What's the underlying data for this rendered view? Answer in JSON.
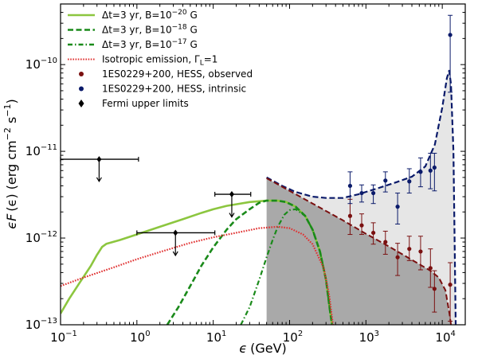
{
  "chart_data": {
    "type": "scatter",
    "title": "",
    "xlabel_symbol": "ϵ",
    "xlabel_unit": "(GeV)",
    "ylabel": {
      "prefix": "ϵF",
      "arg": "(ϵ)",
      "unit_open": "(erg cm",
      "unit_exp1": "−2",
      "unit_mid": " s",
      "unit_exp2": "−1",
      "unit_close": ")"
    },
    "xscale": "log",
    "yscale": "log",
    "xlim": [
      0.1,
      20000
    ],
    "ylim": [
      1e-13,
      5e-10
    ],
    "x_ticks": [
      {
        "value": 0.1,
        "base": "10",
        "exp": "−1"
      },
      {
        "value": 1,
        "base": "10",
        "exp": "0"
      },
      {
        "value": 10,
        "base": "10",
        "exp": "1"
      },
      {
        "value": 100,
        "base": "10",
        "exp": "2"
      },
      {
        "value": 1000,
        "base": "10",
        "exp": "3"
      },
      {
        "value": 10000,
        "base": "10",
        "exp": "4"
      }
    ],
    "y_ticks": [
      {
        "value": 1e-13,
        "base": "10",
        "exp": "−13"
      },
      {
        "value": 1e-12,
        "base": "10",
        "exp": "−12"
      },
      {
        "value": 1e-11,
        "base": "10",
        "exp": "−11"
      },
      {
        "value": 1e-10,
        "base": "10",
        "exp": "−10"
      }
    ],
    "legend_position": "top-left",
    "legend": [
      {
        "id": "cascade-b20",
        "prefix": "Δt=3 yr, B=10",
        "exp": "−20",
        "suffix": " G",
        "color": "#8cc63f",
        "style": "solid",
        "marker": ""
      },
      {
        "id": "cascade-b18",
        "prefix": "Δt=3 yr, B=10",
        "exp": "−18",
        "suffix": " G",
        "color": "#1a8a1a",
        "style": "dashed",
        "marker": ""
      },
      {
        "id": "cascade-b17",
        "prefix": "Δt=3 yr, B=10",
        "exp": "−17",
        "suffix": " G",
        "color": "#1a8a1a",
        "style": "dashdot",
        "marker": ""
      },
      {
        "id": "isotropic",
        "prefix": "Isotropic emission, Γ",
        "sub": "L",
        "suffix": "=1",
        "color": "#e03030",
        "style": "dotted",
        "marker": ""
      },
      {
        "id": "hess-observed",
        "prefix": "1ES0229+200, HESS, observed",
        "color": "#7a1010",
        "style": "",
        "marker": "circle"
      },
      {
        "id": "hess-intrinsic",
        "prefix": "1ES0229+200, HESS, intrinsic",
        "color": "#0a1a6a",
        "style": "",
        "marker": "circle"
      },
      {
        "id": "fermi-ul",
        "prefix": "Fermi upper limits",
        "color": "#000000",
        "style": "",
        "marker": "diamond"
      }
    ],
    "series": [
      {
        "name": "Δt=3 yr, B=10^-20 G",
        "style": "solid",
        "color": "#8cc63f",
        "width": 2.6,
        "points": [
          [
            0.1,
            1.35e-13
          ],
          [
            0.13,
            2e-13
          ],
          [
            0.18,
            3.1e-13
          ],
          [
            0.25,
            4.8e-13
          ],
          [
            0.3,
            6.4e-13
          ],
          [
            0.35,
            7.9e-13
          ],
          [
            0.4,
            8.6e-13
          ],
          [
            0.6,
            9.5e-13
          ],
          [
            1,
            1.1e-12
          ],
          [
            2,
            1.35e-12
          ],
          [
            4,
            1.65e-12
          ],
          [
            7,
            1.95e-12
          ],
          [
            10,
            2.15e-12
          ],
          [
            15,
            2.35e-12
          ],
          [
            20,
            2.45e-12
          ],
          [
            30,
            2.6e-12
          ],
          [
            50,
            2.7e-12
          ],
          [
            70,
            2.7e-12
          ],
          [
            90,
            2.6e-12
          ],
          [
            120,
            2.3e-12
          ],
          [
            160,
            1.8e-12
          ],
          [
            200,
            1.25e-12
          ],
          [
            250,
            7e-13
          ],
          [
            300,
            3.3e-13
          ],
          [
            340,
            1.4e-13
          ],
          [
            360,
            1e-13
          ]
        ]
      },
      {
        "name": "Δt=3 yr, B=10^-18 G",
        "style": "dashed",
        "color": "#1a8a1a",
        "width": 2.6,
        "points": [
          [
            2.5,
            1e-13
          ],
          [
            3.5,
            1.6e-13
          ],
          [
            5,
            2.8e-13
          ],
          [
            7,
            4.8e-13
          ],
          [
            10,
            7.8e-13
          ],
          [
            15,
            1.25e-12
          ],
          [
            20,
            1.65e-12
          ],
          [
            30,
            2.15e-12
          ],
          [
            40,
            2.55e-12
          ],
          [
            50,
            2.7e-12
          ],
          [
            70,
            2.7e-12
          ],
          [
            90,
            2.6e-12
          ],
          [
            120,
            2.3e-12
          ],
          [
            160,
            1.8e-12
          ],
          [
            200,
            1.25e-12
          ],
          [
            250,
            7e-13
          ],
          [
            300,
            3.3e-13
          ],
          [
            340,
            1.4e-13
          ],
          [
            360,
            1e-13
          ]
        ]
      },
      {
        "name": "Δt=3 yr, B=10^-17 G",
        "style": "dashdot",
        "color": "#1a8a1a",
        "width": 2.2,
        "points": [
          [
            23,
            1e-13
          ],
          [
            30,
            1.6e-13
          ],
          [
            40,
            3.3e-13
          ],
          [
            50,
            6e-13
          ],
          [
            60,
            9.5e-13
          ],
          [
            70,
            1.35e-12
          ],
          [
            85,
            1.85e-12
          ],
          [
            100,
            2.1e-12
          ],
          [
            120,
            2.15e-12
          ],
          [
            160,
            1.8e-12
          ],
          [
            200,
            1.25e-12
          ],
          [
            250,
            7e-13
          ],
          [
            300,
            3.3e-13
          ],
          [
            340,
            1.4e-13
          ],
          [
            360,
            1e-13
          ]
        ]
      },
      {
        "name": "Isotropic emission, Γ_L=1",
        "style": "dotted",
        "color": "#e03030",
        "width": 2.2,
        "points": [
          [
            0.1,
            2.8e-13
          ],
          [
            0.2,
            3.5e-13
          ],
          [
            0.5,
            4.6e-13
          ],
          [
            1,
            5.7e-13
          ],
          [
            2,
            6.9e-13
          ],
          [
            5,
            8.8e-13
          ],
          [
            10,
            1.02e-12
          ],
          [
            20,
            1.15e-12
          ],
          [
            40,
            1.3e-12
          ],
          [
            70,
            1.35e-12
          ],
          [
            100,
            1.3e-12
          ],
          [
            150,
            1.1e-12
          ],
          [
            200,
            8.5e-13
          ],
          [
            280,
            4.5e-13
          ],
          [
            330,
            2.2e-13
          ],
          [
            360,
            1.2e-13
          ],
          [
            370,
            1e-13
          ]
        ]
      },
      {
        "name": "intrinsic-model",
        "style": "dashed",
        "color": "#0a1a6a",
        "width": 2.2,
        "points": [
          [
            50,
            5e-12
          ],
          [
            80,
            4e-12
          ],
          [
            120,
            3.4e-12
          ],
          [
            200,
            3e-12
          ],
          [
            300,
            2.9e-12
          ],
          [
            500,
            2.9e-12
          ],
          [
            800,
            3.2e-12
          ],
          [
            1500,
            3.8e-12
          ],
          [
            2500,
            4.4e-12
          ],
          [
            4000,
            5.1e-12
          ],
          [
            6000,
            6.7e-12
          ],
          [
            8000,
            1.2e-11
          ],
          [
            10000,
            3.2e-11
          ],
          [
            11500,
            7e-11
          ],
          [
            12300,
            8.5e-11
          ],
          [
            13000,
            6e-11
          ],
          [
            14000,
            1e-11
          ],
          [
            15000,
            1e-13
          ]
        ]
      },
      {
        "name": "observed-model",
        "style": "dashed",
        "color": "#7a1010",
        "width": 2.0,
        "points": [
          [
            50,
            4.9e-12
          ],
          [
            100,
            3.5e-12
          ],
          [
            200,
            2.5e-12
          ],
          [
            500,
            1.6e-12
          ],
          [
            1000,
            1.12e-12
          ],
          [
            2000,
            8e-13
          ],
          [
            4000,
            5.6e-13
          ],
          [
            7000,
            4.2e-13
          ],
          [
            9000,
            3.5e-13
          ],
          [
            11000,
            2.5e-13
          ],
          [
            12500,
            1.3e-13
          ],
          [
            13000,
            1e-13
          ]
        ]
      }
    ],
    "shaded_regions": [
      {
        "name": "observed-band",
        "color": "#a9a9a9",
        "points": [
          [
            50,
            1e-13
          ],
          [
            50,
            4.9e-12
          ],
          [
            100,
            3.5e-12
          ],
          [
            200,
            2.5e-12
          ],
          [
            500,
            1.6e-12
          ],
          [
            1000,
            1.12e-12
          ],
          [
            2000,
            8e-13
          ],
          [
            4000,
            5.6e-13
          ],
          [
            7000,
            4.2e-13
          ],
          [
            9000,
            3.5e-13
          ],
          [
            11000,
            2.5e-13
          ],
          [
            12500,
            1.3e-13
          ],
          [
            13000,
            1e-13
          ]
        ]
      },
      {
        "name": "intrinsic-band",
        "color": "#e6e6e6",
        "points": [
          [
            50,
            4.9e-12
          ],
          [
            80,
            4e-12
          ],
          [
            120,
            3.4e-12
          ],
          [
            200,
            3e-12
          ],
          [
            300,
            2.9e-12
          ],
          [
            500,
            2.9e-12
          ],
          [
            800,
            3.2e-12
          ],
          [
            1500,
            3.8e-12
          ],
          [
            2500,
            4.4e-12
          ],
          [
            4000,
            5.1e-12
          ],
          [
            6000,
            6.7e-12
          ],
          [
            8000,
            1.2e-11
          ],
          [
            10000,
            3.2e-11
          ],
          [
            11500,
            7e-11
          ],
          [
            12300,
            8.5e-11
          ],
          [
            13000,
            6e-11
          ],
          [
            14000,
            1e-11
          ],
          [
            15000,
            1e-13
          ],
          [
            13000,
            1e-13
          ],
          [
            12500,
            1.3e-13
          ],
          [
            11000,
            2.5e-13
          ],
          [
            9000,
            3.5e-13
          ],
          [
            7000,
            4.2e-13
          ],
          [
            4000,
            5.6e-13
          ],
          [
            2000,
            8e-13
          ],
          [
            1000,
            1.12e-12
          ],
          [
            500,
            1.6e-12
          ],
          [
            200,
            2.5e-12
          ],
          [
            100,
            3.5e-12
          ]
        ]
      }
    ],
    "hess_observed": {
      "color": "#7a1010",
      "points": [
        {
          "x": 620,
          "y": 1.8e-12,
          "ylo": 1.1e-12,
          "yhi": 2.8e-12
        },
        {
          "x": 880,
          "y": 1.4e-12,
          "ylo": 1.1e-12,
          "yhi": 1.9e-12
        },
        {
          "x": 1250,
          "y": 1.15e-12,
          "ylo": 8.5e-13,
          "yhi": 1.5e-12
        },
        {
          "x": 1800,
          "y": 9e-13,
          "ylo": 6.5e-13,
          "yhi": 1.2e-12
        },
        {
          "x": 2600,
          "y": 6e-13,
          "ylo": 3.7e-13,
          "yhi": 8.7e-13
        },
        {
          "x": 3700,
          "y": 7.5e-13,
          "ylo": 5.5e-13,
          "yhi": 1.05e-12
        },
        {
          "x": 5200,
          "y": 7e-13,
          "ylo": 4.3e-13,
          "yhi": 1.05e-12
        },
        {
          "x": 7000,
          "y": 4.5e-13,
          "ylo": 2.7e-13,
          "yhi": 7.5e-13
        },
        {
          "x": 7900,
          "y": 2.6e-13,
          "ylo": 1.4e-13,
          "yhi": 4.2e-13
        },
        {
          "x": 12700,
          "y": 2.9e-13,
          "ylo": 1.1e-13,
          "yhi": 5.2e-13
        }
      ]
    },
    "hess_intrinsic": {
      "color": "#0a1a6a",
      "points": [
        {
          "x": 620,
          "y": 4e-12,
          "ylo": 2.5e-12,
          "yhi": 5.8e-12
        },
        {
          "x": 880,
          "y": 3.3e-12,
          "ylo": 2.6e-12,
          "yhi": 4.1e-12
        },
        {
          "x": 1250,
          "y": 3.3e-12,
          "ylo": 2.5e-12,
          "yhi": 4.1e-12
        },
        {
          "x": 1800,
          "y": 4.6e-12,
          "ylo": 3.4e-12,
          "yhi": 5.8e-12
        },
        {
          "x": 2600,
          "y": 2.3e-12,
          "ylo": 1.45e-12,
          "yhi": 3.3e-12
        },
        {
          "x": 3700,
          "y": 4.5e-12,
          "ylo": 3.3e-12,
          "yhi": 6.3e-12
        },
        {
          "x": 5200,
          "y": 5.8e-12,
          "ylo": 3.9e-12,
          "yhi": 8.4e-12
        },
        {
          "x": 7000,
          "y": 6e-12,
          "ylo": 3.7e-12,
          "yhi": 9.5e-12
        },
        {
          "x": 7900,
          "y": 6.5e-12,
          "ylo": 3.5e-12,
          "yhi": 9.5e-12
        },
        {
          "x": 12700,
          "y": 2.2e-10,
          "ylo": 4.8e-11,
          "yhi": 3.7e-10
        }
      ]
    },
    "fermi_upper_limits": {
      "color": "#000000",
      "points": [
        {
          "x": 0.32,
          "xlo": 0.1,
          "xhi": 1.05,
          "y": 8.1e-12,
          "arrow_to": 4.5e-12
        },
        {
          "x": 3.2,
          "xlo": 1.0,
          "xhi": 10.5,
          "y": 1.15e-12,
          "arrow_to": 6.3e-13
        },
        {
          "x": 17.5,
          "xlo": 10.5,
          "xhi": 31,
          "y": 3.2e-12,
          "arrow_to": 1.75e-12
        }
      ]
    }
  }
}
